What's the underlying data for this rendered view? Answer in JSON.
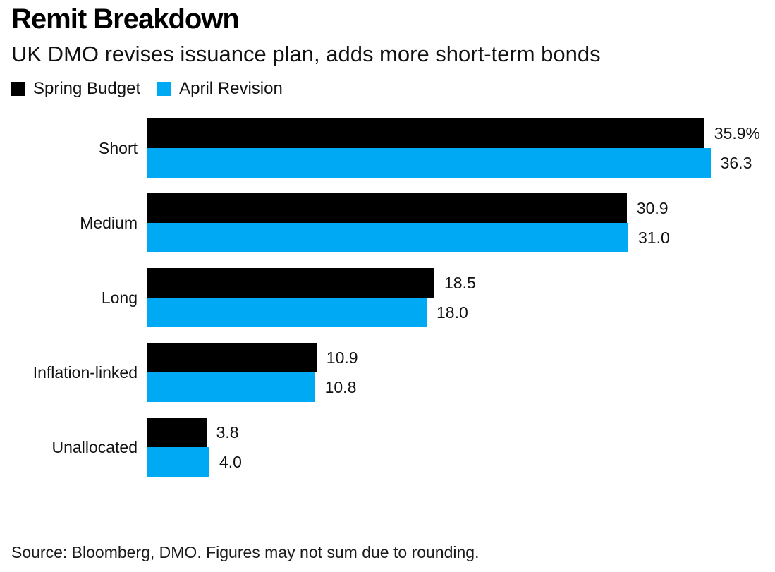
{
  "header": {
    "title": "Remit Breakdown",
    "subtitle": "UK DMO revises issuance plan, adds more short-term bonds"
  },
  "legend": [
    {
      "label": "Spring Budget",
      "color": "#000000"
    },
    {
      "label": "April Revision",
      "color": "#00a9f4"
    }
  ],
  "chart_data": {
    "type": "bar",
    "orientation": "horizontal",
    "title": "Remit Breakdown",
    "subtitle": "UK DMO revises issuance plan, adds more short-term bonds",
    "unit": "percent",
    "categories": [
      "Short",
      "Medium",
      "Long",
      "Inflation-linked",
      "Unallocated"
    ],
    "series": [
      {
        "name": "Spring Budget",
        "color": "#000000",
        "values": [
          35.9,
          30.9,
          18.5,
          10.9,
          3.8
        ],
        "value_labels": [
          "35.9%",
          "30.9",
          "18.5",
          "10.9",
          "3.8"
        ]
      },
      {
        "name": "April Revision",
        "color": "#00a9f4",
        "values": [
          36.3,
          31.0,
          18.0,
          10.8,
          4.0
        ],
        "value_labels": [
          "36.3",
          "31.0",
          "18.0",
          "10.8",
          "4.0"
        ]
      }
    ],
    "xlim": [
      0,
      40
    ],
    "axes_visible": false,
    "grid": false,
    "legend_position": "top",
    "value_labels_position": "right-of-bar"
  },
  "footer": {
    "source": "Source: Bloomberg, DMO. Figures may not sum due to rounding."
  }
}
